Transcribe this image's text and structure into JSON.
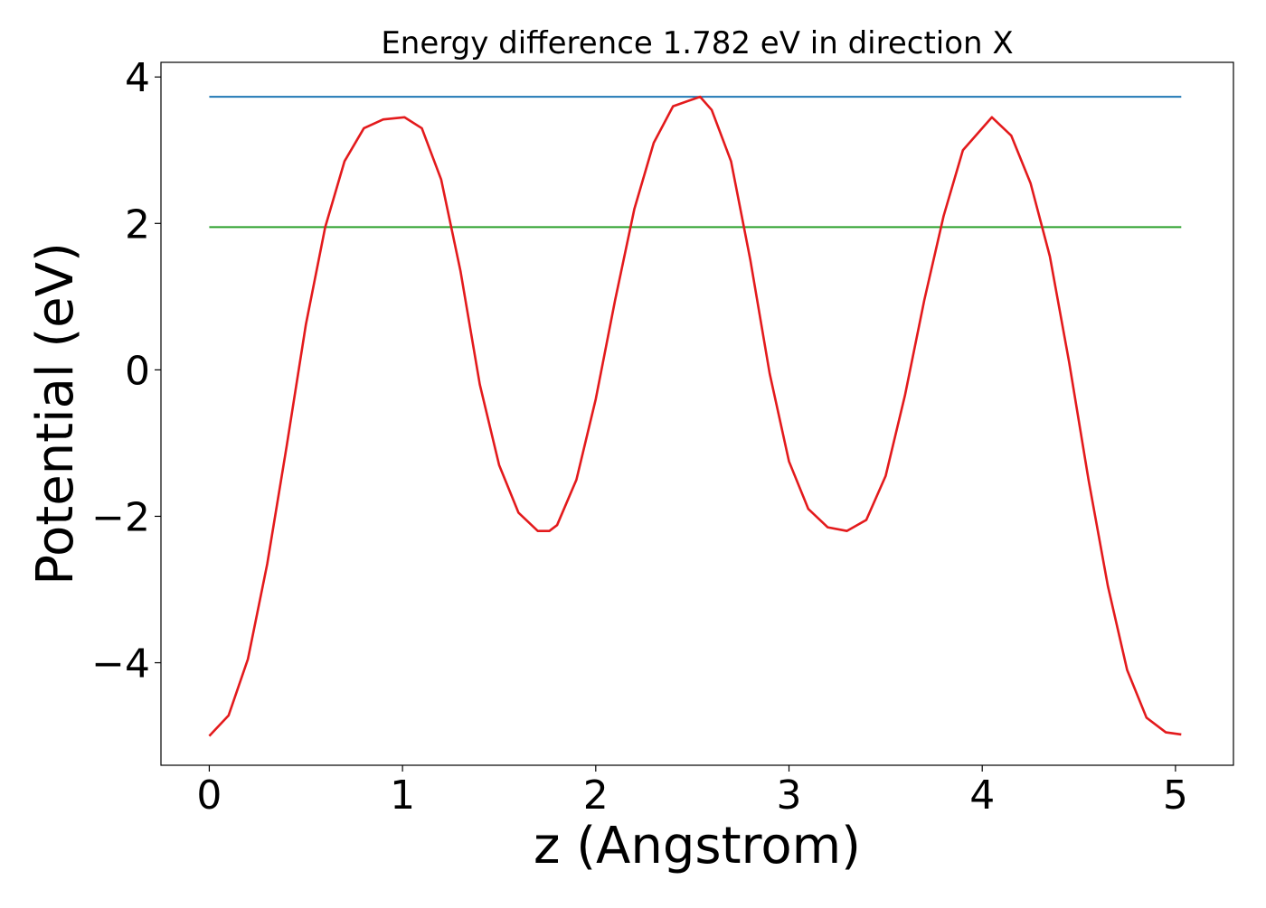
{
  "chart_data": {
    "type": "line",
    "title": "Energy difference 1.782 eV in direction X",
    "xlabel": "z (Angstrom)",
    "ylabel": "Potential (eV)",
    "xlim": [
      -0.25,
      5.3
    ],
    "ylim": [
      -5.4,
      4.2
    ],
    "grid": false,
    "xticks": [
      0,
      1,
      2,
      3,
      4,
      5
    ],
    "yticks": [
      -4,
      -2,
      0,
      2,
      4
    ],
    "xtick_labels": [
      "0",
      "1",
      "2",
      "3",
      "4",
      "5"
    ],
    "ytick_labels": [
      "−4",
      "−2",
      "0",
      "2",
      "4"
    ],
    "series": [
      {
        "color": "#1f77b4",
        "kind": "hline",
        "x": [
          0,
          5.03
        ],
        "y": [
          3.73,
          3.73
        ]
      },
      {
        "color": "#2ca02c",
        "kind": "hline",
        "x": [
          0,
          5.03
        ],
        "y": [
          1.95,
          1.95
        ]
      },
      {
        "color": "#e31a1c",
        "kind": "curve",
        "x": [
          0.0,
          0.1,
          0.2,
          0.3,
          0.4,
          0.5,
          0.6,
          0.7,
          0.8,
          0.9,
          1.01,
          1.1,
          1.2,
          1.3,
          1.4,
          1.5,
          1.6,
          1.7,
          1.76,
          1.8,
          1.9,
          2.0,
          2.1,
          2.2,
          2.3,
          2.4,
          2.54,
          2.6,
          2.7,
          2.8,
          2.9,
          3.0,
          3.1,
          3.2,
          3.3,
          3.4,
          3.5,
          3.6,
          3.7,
          3.8,
          3.9,
          4.05,
          4.15,
          4.25,
          4.35,
          4.45,
          4.55,
          4.65,
          4.75,
          4.85,
          4.95,
          5.03
        ],
        "y": [
          -5.0,
          -4.72,
          -3.95,
          -2.65,
          -1.05,
          0.62,
          1.95,
          2.85,
          3.3,
          3.42,
          3.45,
          3.3,
          2.6,
          1.35,
          -0.2,
          -1.3,
          -1.95,
          -2.2,
          -2.2,
          -2.12,
          -1.5,
          -0.4,
          0.95,
          2.2,
          3.1,
          3.6,
          3.73,
          3.55,
          2.85,
          1.5,
          -0.05,
          -1.25,
          -1.9,
          -2.15,
          -2.2,
          -2.05,
          -1.45,
          -0.35,
          0.95,
          2.1,
          3.0,
          3.45,
          3.2,
          2.55,
          1.55,
          0.1,
          -1.5,
          -2.95,
          -4.1,
          -4.75,
          -4.95,
          -4.98
        ]
      }
    ]
  }
}
